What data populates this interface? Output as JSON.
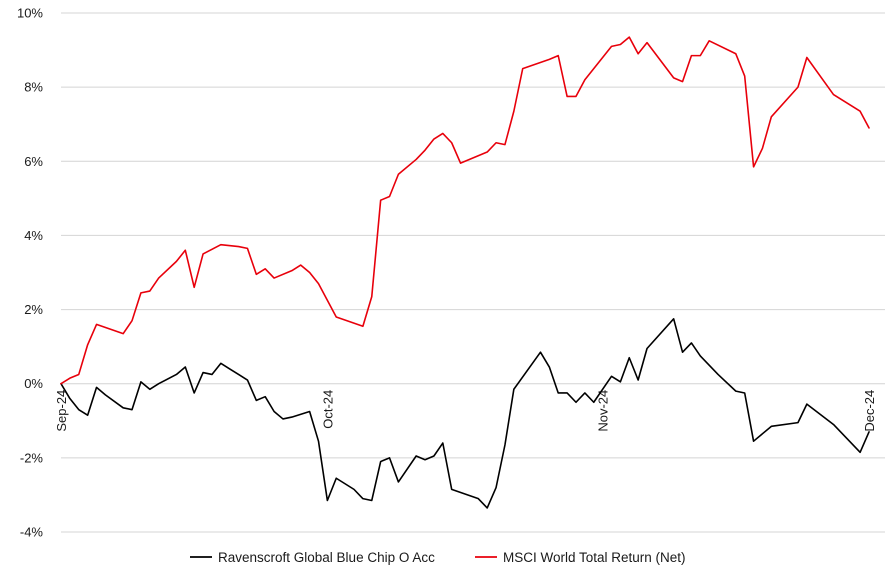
{
  "chart_data": {
    "type": "line",
    "title": "",
    "xlabel": "",
    "ylabel": "",
    "ylim": [
      -4,
      10
    ],
    "yticks": [
      -4,
      -2,
      0,
      2,
      4,
      6,
      8,
      10
    ],
    "ytick_labels": [
      "-4%",
      "-2%",
      "0%",
      "2%",
      "4%",
      "6%",
      "8%",
      "10%"
    ],
    "xlim": [
      "2024-09-01",
      "2024-12-01"
    ],
    "xticks": [
      "2024-09-01",
      "2024-10-01",
      "2024-11-01",
      "2024-12-01"
    ],
    "xtick_labels": [
      "Sep-24",
      "Oct-24",
      "Nov-24",
      "Dec-24"
    ],
    "grid": "horizontal",
    "legend_position": "bottom",
    "series": [
      {
        "name": "Ravenscroft Global Blue Chip O Acc",
        "color": "#000000",
        "points": [
          [
            "2024-09-01",
            0.0
          ],
          [
            "2024-09-02",
            -0.4
          ],
          [
            "2024-09-03",
            -0.7
          ],
          [
            "2024-09-04",
            -0.85
          ],
          [
            "2024-09-05",
            -0.1
          ],
          [
            "2024-09-06",
            -0.3
          ],
          [
            "2024-09-08",
            -0.65
          ],
          [
            "2024-09-09",
            -0.7
          ],
          [
            "2024-09-10",
            0.05
          ],
          [
            "2024-09-11",
            -0.15
          ],
          [
            "2024-09-12",
            0.0
          ],
          [
            "2024-09-14",
            0.25
          ],
          [
            "2024-09-15",
            0.45
          ],
          [
            "2024-09-16",
            -0.25
          ],
          [
            "2024-09-17",
            0.3
          ],
          [
            "2024-09-18",
            0.25
          ],
          [
            "2024-09-19",
            0.55
          ],
          [
            "2024-09-20",
            0.4
          ],
          [
            "2024-09-21",
            0.25
          ],
          [
            "2024-09-22",
            0.1
          ],
          [
            "2024-09-23",
            -0.45
          ],
          [
            "2024-09-24",
            -0.35
          ],
          [
            "2024-09-25",
            -0.75
          ],
          [
            "2024-09-26",
            -0.95
          ],
          [
            "2024-09-27",
            -0.9
          ],
          [
            "2024-09-29",
            -0.75
          ],
          [
            "2024-09-30",
            -1.55
          ],
          [
            "2024-10-01",
            -3.15
          ],
          [
            "2024-10-02",
            -2.55
          ],
          [
            "2024-10-04",
            -2.85
          ],
          [
            "2024-10-05",
            -3.1
          ],
          [
            "2024-10-06",
            -3.15
          ],
          [
            "2024-10-07",
            -2.1
          ],
          [
            "2024-10-08",
            -2.0
          ],
          [
            "2024-10-09",
            -2.65
          ],
          [
            "2024-10-11",
            -1.95
          ],
          [
            "2024-10-12",
            -2.05
          ],
          [
            "2024-10-13",
            -1.95
          ],
          [
            "2024-10-14",
            -1.6
          ],
          [
            "2024-10-15",
            -2.85
          ],
          [
            "2024-10-18",
            -3.1
          ],
          [
            "2024-10-19",
            -3.35
          ],
          [
            "2024-10-20",
            -2.8
          ],
          [
            "2024-10-21",
            -1.65
          ],
          [
            "2024-10-22",
            -0.15
          ],
          [
            "2024-10-25",
            0.85
          ],
          [
            "2024-10-26",
            0.45
          ],
          [
            "2024-10-27",
            -0.25
          ],
          [
            "2024-10-28",
            -0.25
          ],
          [
            "2024-10-29",
            -0.5
          ],
          [
            "2024-10-30",
            -0.25
          ],
          [
            "2024-10-31",
            -0.5
          ],
          [
            "2024-11-02",
            0.2
          ],
          [
            "2024-11-03",
            0.05
          ],
          [
            "2024-11-04",
            0.7
          ],
          [
            "2024-11-05",
            0.1
          ],
          [
            "2024-11-06",
            0.95
          ],
          [
            "2024-11-09",
            1.75
          ],
          [
            "2024-11-10",
            0.85
          ],
          [
            "2024-11-11",
            1.1
          ],
          [
            "2024-11-12",
            0.75
          ],
          [
            "2024-11-14",
            0.25
          ],
          [
            "2024-11-16",
            -0.2
          ],
          [
            "2024-11-17",
            -0.25
          ],
          [
            "2024-11-18",
            -1.55
          ],
          [
            "2024-11-20",
            -1.15
          ],
          [
            "2024-11-23",
            -1.05
          ],
          [
            "2024-11-24",
            -0.55
          ],
          [
            "2024-11-27",
            -1.1
          ],
          [
            "2024-11-30",
            -1.85
          ],
          [
            "2024-12-01",
            -1.3
          ]
        ]
      },
      {
        "name": "MSCI World Total Return (Net)",
        "color": "#e8000b",
        "points": [
          [
            "2024-09-01",
            0.0
          ],
          [
            "2024-09-02",
            0.15
          ],
          [
            "2024-09-03",
            0.25
          ],
          [
            "2024-09-04",
            1.05
          ],
          [
            "2024-09-05",
            1.6
          ],
          [
            "2024-09-08",
            1.35
          ],
          [
            "2024-09-09",
            1.7
          ],
          [
            "2024-09-10",
            2.45
          ],
          [
            "2024-09-11",
            2.5
          ],
          [
            "2024-09-12",
            2.85
          ],
          [
            "2024-09-14",
            3.3
          ],
          [
            "2024-09-15",
            3.6
          ],
          [
            "2024-09-16",
            2.6
          ],
          [
            "2024-09-17",
            3.5
          ],
          [
            "2024-09-19",
            3.75
          ],
          [
            "2024-09-21",
            3.7
          ],
          [
            "2024-09-22",
            3.65
          ],
          [
            "2024-09-23",
            2.95
          ],
          [
            "2024-09-24",
            3.1
          ],
          [
            "2024-09-25",
            2.85
          ],
          [
            "2024-09-27",
            3.05
          ],
          [
            "2024-09-28",
            3.2
          ],
          [
            "2024-09-29",
            3.0
          ],
          [
            "2024-09-30",
            2.7
          ],
          [
            "2024-10-02",
            1.8
          ],
          [
            "2024-10-05",
            1.55
          ],
          [
            "2024-10-06",
            2.35
          ],
          [
            "2024-10-07",
            4.95
          ],
          [
            "2024-10-08",
            5.05
          ],
          [
            "2024-10-09",
            5.65
          ],
          [
            "2024-10-11",
            6.05
          ],
          [
            "2024-10-12",
            6.3
          ],
          [
            "2024-10-13",
            6.6
          ],
          [
            "2024-10-14",
            6.75
          ],
          [
            "2024-10-15",
            6.5
          ],
          [
            "2024-10-16",
            5.95
          ],
          [
            "2024-10-19",
            6.25
          ],
          [
            "2024-10-20",
            6.5
          ],
          [
            "2024-10-21",
            6.45
          ],
          [
            "2024-10-22",
            7.35
          ],
          [
            "2024-10-23",
            8.5
          ],
          [
            "2024-10-26",
            8.75
          ],
          [
            "2024-10-27",
            8.85
          ],
          [
            "2024-10-28",
            7.75
          ],
          [
            "2024-10-29",
            7.75
          ],
          [
            "2024-10-30",
            8.2
          ],
          [
            "2024-11-02",
            9.1
          ],
          [
            "2024-11-03",
            9.15
          ],
          [
            "2024-11-04",
            9.35
          ],
          [
            "2024-11-05",
            8.9
          ],
          [
            "2024-11-06",
            9.2
          ],
          [
            "2024-11-09",
            8.25
          ],
          [
            "2024-11-10",
            8.15
          ],
          [
            "2024-11-11",
            8.85
          ],
          [
            "2024-11-12",
            8.85
          ],
          [
            "2024-11-13",
            9.25
          ],
          [
            "2024-11-16",
            8.9
          ],
          [
            "2024-11-17",
            8.3
          ],
          [
            "2024-11-18",
            5.85
          ],
          [
            "2024-11-19",
            6.35
          ],
          [
            "2024-11-20",
            7.2
          ],
          [
            "2024-11-23",
            8.0
          ],
          [
            "2024-11-24",
            8.8
          ],
          [
            "2024-11-27",
            7.8
          ],
          [
            "2024-11-30",
            7.35
          ],
          [
            "2024-12-01",
            6.9
          ]
        ]
      }
    ]
  }
}
